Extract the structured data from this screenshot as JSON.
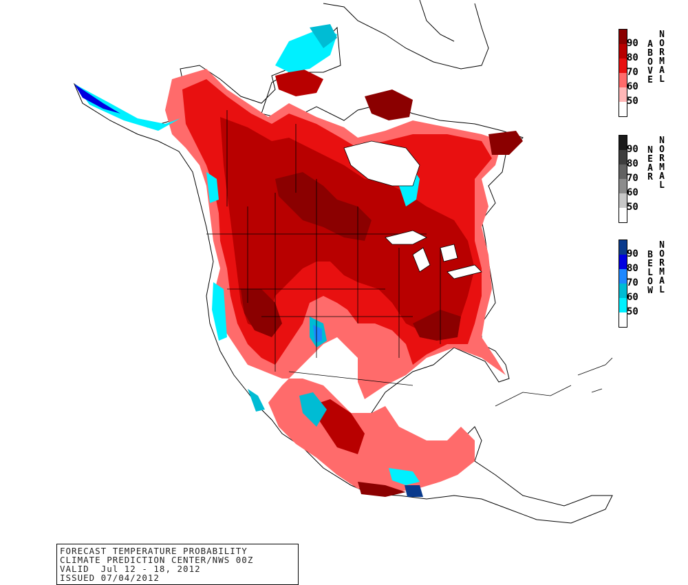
{
  "info": {
    "line1": "FORECAST TEMPERATURE PROBABILITY",
    "line2": "CLIMATE PREDICTION CENTER/NWS 00Z",
    "line3": "VALID  Jul 12 - 18, 2012",
    "line4": "ISSUED 07/04/2012"
  },
  "legends": [
    {
      "id": "above",
      "word1": "ABOVE",
      "word2": "NORMAL",
      "ticks": [
        "90",
        "80",
        "70",
        "60",
        "50"
      ],
      "colors": [
        "#8b0000",
        "#b80000",
        "#e81010",
        "#ff6b6b",
        "#ffb7b7",
        "#ffffff"
      ]
    },
    {
      "id": "near",
      "word1": "NEAR",
      "word2": "NORMAL",
      "ticks": [
        "90",
        "80",
        "70",
        "60",
        "50"
      ],
      "colors": [
        "#1a1a1a",
        "#3d3d3d",
        "#626262",
        "#8c8c8c",
        "#c8c8c8",
        "#ffffff"
      ]
    },
    {
      "id": "below",
      "word1": "BELOW",
      "word2": "NORMAL",
      "ticks": [
        "90",
        "80",
        "70",
        "60",
        "50"
      ],
      "colors": [
        "#0a3a8c",
        "#0000e0",
        "#1e88ff",
        "#00bcd4",
        "#00f0ff",
        "#ffffff"
      ]
    }
  ],
  "map_colors": {
    "above_50": "#ffb7b7",
    "above_60": "#ff6b6b",
    "above_70": "#e81010",
    "above_80": "#b80000",
    "above_90": "#8b0000",
    "below_50": "#00f0ff",
    "below_60": "#00bcd4",
    "below_70": "#1e88ff",
    "below_80": "#0000e0",
    "below_90": "#0a3a8c"
  }
}
